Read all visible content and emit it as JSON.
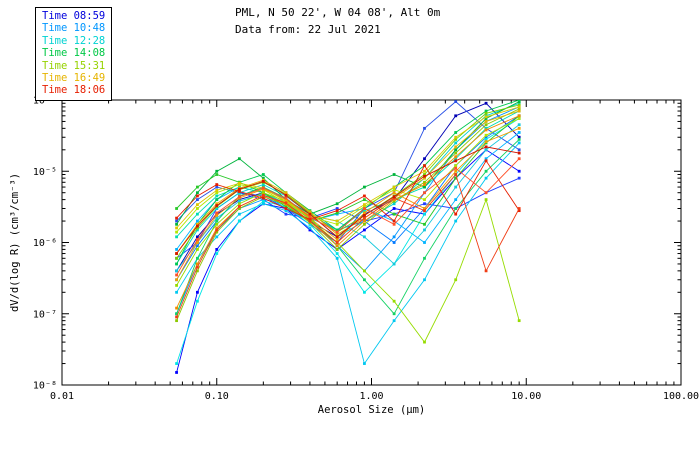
{
  "header": {
    "title": "PML, N 50 22', W 04 08', Alt 0m",
    "subtitle": "Data from: 22 Jul 2021"
  },
  "legend": {
    "items": [
      {
        "label": "Time 08:59",
        "color": "#0000dc"
      },
      {
        "label": "Time 10:48",
        "color": "#0096ff"
      },
      {
        "label": "Time 12:28",
        "color": "#00d2d2"
      },
      {
        "label": "Time 14:08",
        "color": "#00c846"
      },
      {
        "label": "Time 15:31",
        "color": "#96d200"
      },
      {
        "label": "Time 16:49",
        "color": "#e6b400"
      },
      {
        "label": "Time 18:06",
        "color": "#e61e00"
      }
    ]
  },
  "chart_data": {
    "type": "line",
    "title": "PML, N 50 22', W 04 08', Alt 0m",
    "subtitle": "Data from: 22 Jul 2021",
    "xlabel": "Aerosol Size (μm)",
    "ylabel": "dV/d(log R) (cm³/cm⁻³)",
    "x_scale": "log",
    "y_scale": "log",
    "xlim": [
      0.01,
      100
    ],
    "ylim": [
      1e-08,
      0.0001
    ],
    "x_tick_labels": [
      "0.01",
      "0.10",
      "1.00",
      "10.00",
      "100.00"
    ],
    "y_tick_labels": [
      "10⁻⁸",
      "10⁻⁷",
      "10⁻⁶",
      "10⁻⁵",
      "10⁻⁴"
    ],
    "grid": false,
    "legend_position": "top-left",
    "marker": "square",
    "x": [
      0.055,
      0.075,
      0.1,
      0.14,
      0.2,
      0.28,
      0.4,
      0.6,
      0.9,
      1.4,
      2.2,
      3.5,
      5.5,
      9.0
    ],
    "series": [
      {
        "time_group": "08:59",
        "color": "#0000b4",
        "y": [
          4e-07,
          1.2e-06,
          2.5e-06,
          4e-06,
          5e-06,
          3.5e-06,
          2e-06,
          1.2e-06,
          2.5e-06,
          4e-06,
          1.5e-05,
          6e-05,
          9e-05,
          3e-05
        ]
      },
      {
        "time_group": "08:59",
        "color": "#0000ff",
        "y": [
          1.5e-08,
          2e-07,
          8e-07,
          2e-06,
          3.5e-06,
          3e-06,
          1.5e-06,
          8e-07,
          1.5e-06,
          3e-06,
          2.5e-06,
          8e-06,
          2e-05,
          1e-05
        ]
      },
      {
        "time_group": "08:59",
        "color": "#1e3cff",
        "y": [
          6e-07,
          1e-06,
          3e-06,
          5e-06,
          4e-06,
          2.5e-06,
          2.2e-06,
          3e-06,
          2e-06,
          2.5e-06,
          3.5e-06,
          3e-06,
          5e-06,
          8e-06
        ]
      },
      {
        "time_group": "08:59",
        "color": "#2850e6",
        "y": [
          2e-06,
          4e-06,
          6e-06,
          5e-06,
          4.5e-06,
          3e-06,
          1.8e-06,
          1e-06,
          3e-06,
          5e-06,
          4e-05,
          9.5e-05,
          4e-05,
          2e-05
        ]
      },
      {
        "time_group": "10:48",
        "color": "#0078ff",
        "y": [
          3e-07,
          9e-07,
          2e-06,
          4.5e-06,
          6e-06,
          4e-06,
          2.5e-06,
          1.5e-06,
          2e-06,
          1e-06,
          3e-06,
          1.2e-05,
          3e-05,
          6e-05
        ]
      },
      {
        "time_group": "10:48",
        "color": "#0096ff",
        "y": [
          1e-07,
          5e-07,
          1.5e-06,
          3e-06,
          4e-06,
          3.5e-06,
          2e-06,
          9e-07,
          4e-07,
          1.2e-06,
          5e-06,
          2e-05,
          5e-05,
          8e-05
        ]
      },
      {
        "time_group": "10:48",
        "color": "#00b4ff",
        "y": [
          8e-07,
          2e-06,
          4e-06,
          6e-06,
          5e-06,
          3e-06,
          2e-06,
          2.5e-06,
          3e-06,
          2e-06,
          1e-06,
          4e-06,
          1.5e-05,
          3.5e-05
        ]
      },
      {
        "time_group": "10:48",
        "color": "#00c8f0",
        "y": [
          2e-07,
          6e-07,
          1.2e-06,
          2.5e-06,
          3.5e-06,
          2.8e-06,
          1.6e-06,
          6e-07,
          2e-08,
          8e-08,
          3e-07,
          2e-06,
          8e-06,
          2.5e-05
        ]
      },
      {
        "time_group": "12:28",
        "color": "#00d2d2",
        "y": [
          5e-07,
          1.5e-06,
          3e-06,
          5e-06,
          6.5e-06,
          4.5e-06,
          2.5e-06,
          1.2e-06,
          2e-06,
          3.5e-06,
          8e-06,
          2.5e-05,
          6e-05,
          9e-05
        ]
      },
      {
        "time_group": "12:28",
        "color": "#00dcb4",
        "y": [
          1.2e-06,
          2.5e-06,
          4.5e-06,
          6e-06,
          5e-06,
          3.5e-06,
          2.2e-06,
          1.5e-06,
          2.8e-06,
          4e-06,
          6e-06,
          1.5e-05,
          4e-05,
          7e-05
        ]
      },
      {
        "time_group": "12:28",
        "color": "#00e6e6",
        "y": [
          2e-08,
          1.5e-07,
          7e-07,
          2e-06,
          3.8e-06,
          3.2e-06,
          1.8e-06,
          7e-07,
          2e-07,
          5e-07,
          2.5e-06,
          9e-06,
          2.8e-05,
          5.5e-05
        ]
      },
      {
        "time_group": "12:28",
        "color": "#14c8dc",
        "y": [
          4e-07,
          1e-06,
          2.2e-06,
          3.8e-06,
          4.8e-06,
          3.6e-06,
          2.4e-06,
          2e-06,
          1.2e-06,
          5e-07,
          1.5e-06,
          6e-06,
          2e-05,
          4.5e-05
        ]
      },
      {
        "time_group": "14:08",
        "color": "#00b43c",
        "y": [
          1.8e-06,
          5e-06,
          1e-05,
          1.5e-05,
          8e-06,
          4e-06,
          2.5e-06,
          3.5e-06,
          6e-06,
          9e-06,
          6e-06,
          2e-05,
          5.5e-05,
          9.5e-05
        ]
      },
      {
        "time_group": "14:08",
        "color": "#00c850",
        "y": [
          5e-07,
          1.8e-06,
          4e-06,
          7e-06,
          9e-06,
          5e-06,
          2.8e-06,
          1.5e-06,
          3e-06,
          6e-06,
          1.2e-05,
          3.5e-05,
          7e-05,
          0.0001
        ]
      },
      {
        "time_group": "14:08",
        "color": "#14d264",
        "y": [
          1e-07,
          6e-07,
          2e-06,
          4.5e-06,
          6e-06,
          4.2e-06,
          2.2e-06,
          9e-07,
          3e-07,
          1e-07,
          6e-07,
          3e-06,
          1e-05,
          2.8e-05
        ]
      },
      {
        "time_group": "14:08",
        "color": "#28c828",
        "y": [
          3e-06,
          6e-06,
          9e-06,
          7e-06,
          5e-06,
          3.2e-06,
          2e-06,
          2.6e-06,
          4e-06,
          2.5e-06,
          1.8e-06,
          8e-06,
          2.5e-05,
          6e-05
        ]
      },
      {
        "time_group": "15:31",
        "color": "#78d200",
        "y": [
          6e-07,
          1.6e-06,
          3.2e-06,
          5.5e-06,
          7e-06,
          4.8e-06,
          2.6e-06,
          1.4e-06,
          2.4e-06,
          4.5e-06,
          9e-06,
          2.8e-05,
          6.5e-05,
          8.5e-05
        ]
      },
      {
        "time_group": "15:31",
        "color": "#96dc00",
        "y": [
          2.5e-07,
          8e-07,
          1.8e-06,
          3.5e-06,
          5e-06,
          3.8e-06,
          2.1e-06,
          1e-06,
          4e-07,
          1.5e-07,
          4e-08,
          3e-07,
          4e-06,
          8e-08
        ]
      },
      {
        "time_group": "15:31",
        "color": "#b4e600",
        "y": [
          1.4e-06,
          3e-06,
          5e-06,
          6.5e-06,
          5.5e-06,
          3.6e-06,
          2.3e-06,
          1.8e-06,
          3.2e-06,
          5.5e-06,
          4e-06,
          1.2e-05,
          3.2e-05,
          5.5e-05
        ]
      },
      {
        "time_group": "15:31",
        "color": "#8cc800",
        "y": [
          8e-08,
          4e-07,
          1.4e-06,
          3e-06,
          4.4e-06,
          3.4e-06,
          1.9e-06,
          8e-07,
          1.8e-06,
          3.8e-06,
          7e-06,
          1.8e-05,
          4.5e-05,
          7.5e-05
        ]
      },
      {
        "time_group": "16:49",
        "color": "#e6b400",
        "y": [
          7e-07,
          1.8e-06,
          3.5e-06,
          5.8e-06,
          7.5e-06,
          5e-06,
          2.7e-06,
          1.3e-06,
          2.2e-06,
          4.2e-06,
          8e-06,
          2.2e-05,
          5e-05,
          7e-05
        ]
      },
      {
        "time_group": "16:49",
        "color": "#f0a000",
        "y": [
          3e-07,
          1e-06,
          2.4e-06,
          4.2e-06,
          5.6e-06,
          4e-06,
          2.2e-06,
          1.1e-06,
          2.6e-06,
          5e-06,
          3e-06,
          1e-05,
          2.6e-05,
          4e-05
        ]
      },
      {
        "time_group": "16:49",
        "color": "#dcc800",
        "y": [
          1.6e-06,
          3.4e-06,
          5.4e-06,
          6.8e-06,
          5.8e-06,
          3.8e-06,
          2.4e-06,
          2e-06,
          3.4e-06,
          6e-06,
          1e-05,
          3e-05,
          5.8e-05,
          8e-05
        ]
      },
      {
        "time_group": "16:49",
        "color": "#f08c00",
        "y": [
          1.2e-07,
          5e-07,
          1.6e-06,
          3.2e-06,
          4.6e-06,
          3.5e-06,
          2e-06,
          9e-07,
          2e-06,
          4e-06,
          6.5e-06,
          1.6e-05,
          3.8e-05,
          6e-05
        ]
      },
      {
        "time_group": "18:06",
        "color": "#e61e00",
        "y": [
          2.2e-06,
          4.5e-06,
          6.5e-06,
          5.2e-06,
          4.2e-06,
          3e-06,
          2.1e-06,
          2.8e-06,
          4.5e-06,
          2e-06,
          1.2e-05,
          2.5e-06,
          1.4e-05,
          2.8e-06
        ]
      },
      {
        "time_group": "18:06",
        "color": "#f03c14",
        "y": [
          9e-08,
          4.5e-07,
          1.5e-06,
          3.2e-06,
          4.6e-06,
          3.6e-06,
          2e-06,
          1e-06,
          2.2e-06,
          4.2e-06,
          2.8e-06,
          9e-06,
          4e-07,
          3e-06
        ]
      },
      {
        "time_group": "18:06",
        "color": "#d21400",
        "y": [
          7e-07,
          1.7e-06,
          3.3e-06,
          5.6e-06,
          7.2e-06,
          4.6e-06,
          2.5e-06,
          1.2e-06,
          2.4e-06,
          4.4e-06,
          8.5e-06,
          1.4e-05,
          2.2e-05,
          1.8e-05
        ]
      },
      {
        "time_group": "18:06",
        "color": "#ff5028",
        "y": [
          3.5e-07,
          1.1e-06,
          2.6e-06,
          4.4e-06,
          5.8e-06,
          4.2e-06,
          2.3e-06,
          1.4e-06,
          3e-06,
          1.8e-06,
          5e-06,
          1.1e-05,
          5e-06,
          1.5e-05
        ]
      }
    ]
  }
}
